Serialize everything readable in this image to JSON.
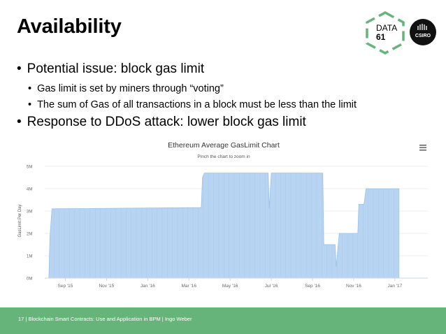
{
  "slide": {
    "title": "Availability",
    "bullets": [
      {
        "text": "Potential issue: block gas limit",
        "level": 1
      },
      {
        "text": "Gas limit is set by miners through “voting”",
        "level": 2
      },
      {
        "text": "The sum of Gas of all transactions in a block must be less than the limit",
        "level": 2
      },
      {
        "text": "Response to DDoS attack: lower block gas limit",
        "level": 1
      }
    ],
    "bullet_glyph": "•",
    "logos": {
      "data61_line1": "DATA",
      "data61_line2": "61",
      "csiro": "CSIRO"
    },
    "footer": "17  |  Blockchain Smart Contracts: Use and Application in BPM  |  Ingo Weber",
    "colors": {
      "footer_bg": "#67b47a",
      "logo_green": "#67b47a",
      "bar_fill": "#b7d4f2",
      "bar_stroke": "#9cc0e8"
    }
  },
  "chart_data": {
    "type": "area",
    "title": "Ethereum Average GasLimit Chart",
    "subtitle": "Pinch the chart to zoom in",
    "ylabel": "GasLimit Per Day",
    "xlabel": "",
    "ylim": [
      0,
      5
    ],
    "yticks": [
      "0M",
      "1M",
      "2M",
      "3M",
      "4M",
      "5M"
    ],
    "xticks": [
      "Sep '15",
      "Nov '15",
      "Jan '16",
      "Mar '16",
      "May '16",
      "Jul '16",
      "Sep '16",
      "Nov '16",
      "Jan '17"
    ],
    "xlim": [
      0,
      18.6
    ],
    "x_unit": "months since Aug 1 2015",
    "menu_icon": "hamburger-menu-icon",
    "series": [
      {
        "values": [
          [
            0.2,
            0.0
          ],
          [
            0.25,
            1.8
          ],
          [
            0.35,
            3.1
          ],
          [
            7.0,
            3.15
          ],
          [
            7.6,
            3.15
          ],
          [
            7.66,
            4.5
          ],
          [
            7.75,
            4.7
          ],
          [
            10.85,
            4.7
          ],
          [
            10.9,
            3.1
          ],
          [
            11.0,
            4.7
          ],
          [
            13.5,
            4.7
          ],
          [
            13.55,
            1.5
          ],
          [
            14.1,
            1.5
          ],
          [
            14.15,
            0.5
          ],
          [
            14.3,
            2.0
          ],
          [
            15.2,
            2.0
          ],
          [
            15.25,
            3.3
          ],
          [
            15.5,
            3.3
          ],
          [
            15.6,
            4.0
          ],
          [
            17.2,
            4.0
          ]
        ]
      }
    ]
  }
}
